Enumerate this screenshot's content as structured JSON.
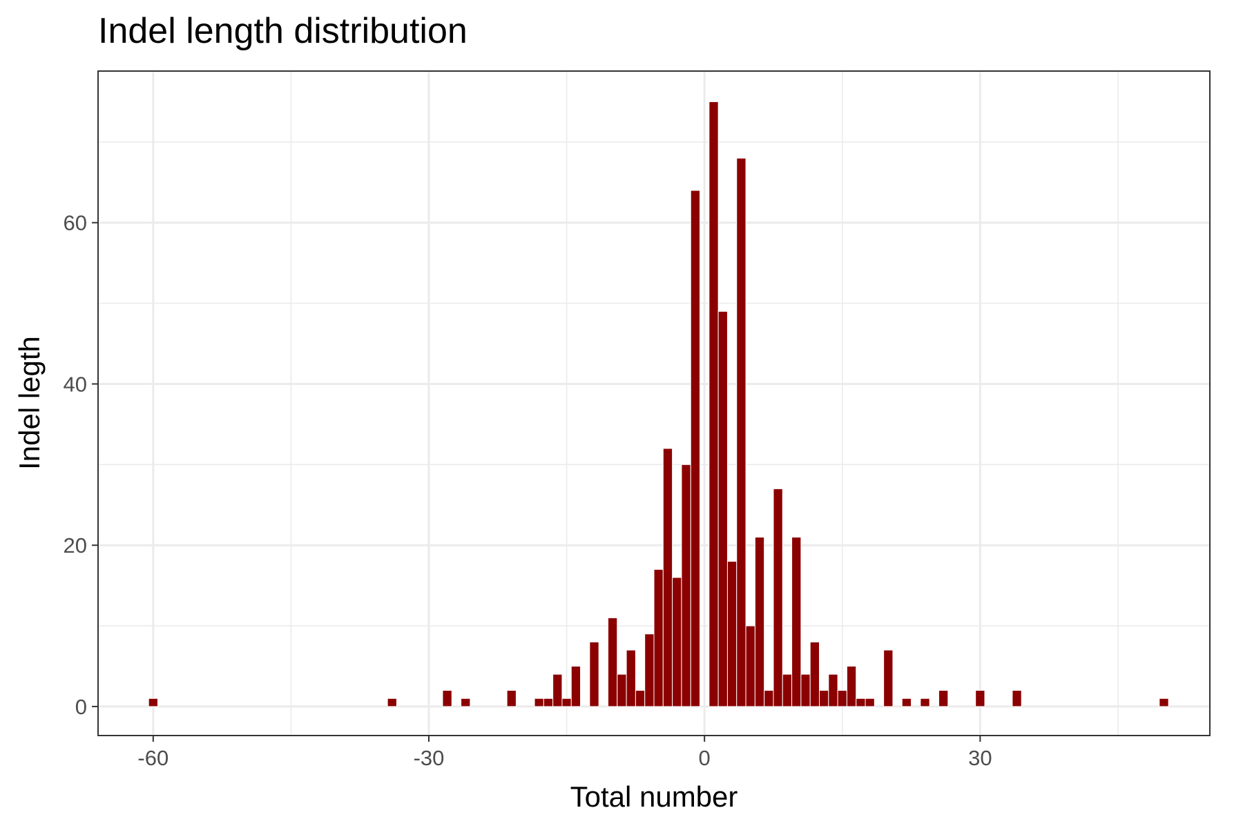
{
  "chart_data": {
    "type": "bar",
    "title": "Indel length distribution",
    "xlabel": "Total number",
    "ylabel": "Indel legth",
    "xlim": [
      -66,
      55
    ],
    "ylim": [
      -3.6,
      78.8
    ],
    "x_ticks": [
      -60,
      -30,
      0,
      30
    ],
    "y_ticks": [
      0,
      20,
      40,
      60
    ],
    "grid": true,
    "legend": "none",
    "colors": {
      "bar": "#8b0000",
      "grid": "#ebebeb",
      "border": "#333333",
      "tick_label": "#4d4d4d"
    },
    "series": [
      {
        "x": [
          -60,
          -34,
          -28,
          -26,
          -21,
          -18,
          -17,
          -16,
          -15,
          -14,
          -12,
          -10,
          -9,
          -8,
          -7,
          -6,
          -5,
          -4,
          -3,
          -2,
          -1,
          1,
          2,
          3,
          4,
          5,
          6,
          7,
          8,
          9,
          10,
          11,
          12,
          13,
          14,
          15,
          16,
          17,
          18,
          20,
          22,
          24,
          26,
          30,
          34,
          50
        ],
        "values": [
          1,
          1,
          2,
          1,
          2,
          1,
          1,
          4,
          1,
          5,
          8,
          11,
          4,
          7,
          2,
          9,
          17,
          32,
          16,
          30,
          64,
          75,
          49,
          18,
          68,
          10,
          21,
          2,
          27,
          4,
          21,
          4,
          8,
          2,
          4,
          2,
          5,
          1,
          1,
          7,
          1,
          1,
          2,
          2,
          2,
          1
        ]
      }
    ]
  }
}
